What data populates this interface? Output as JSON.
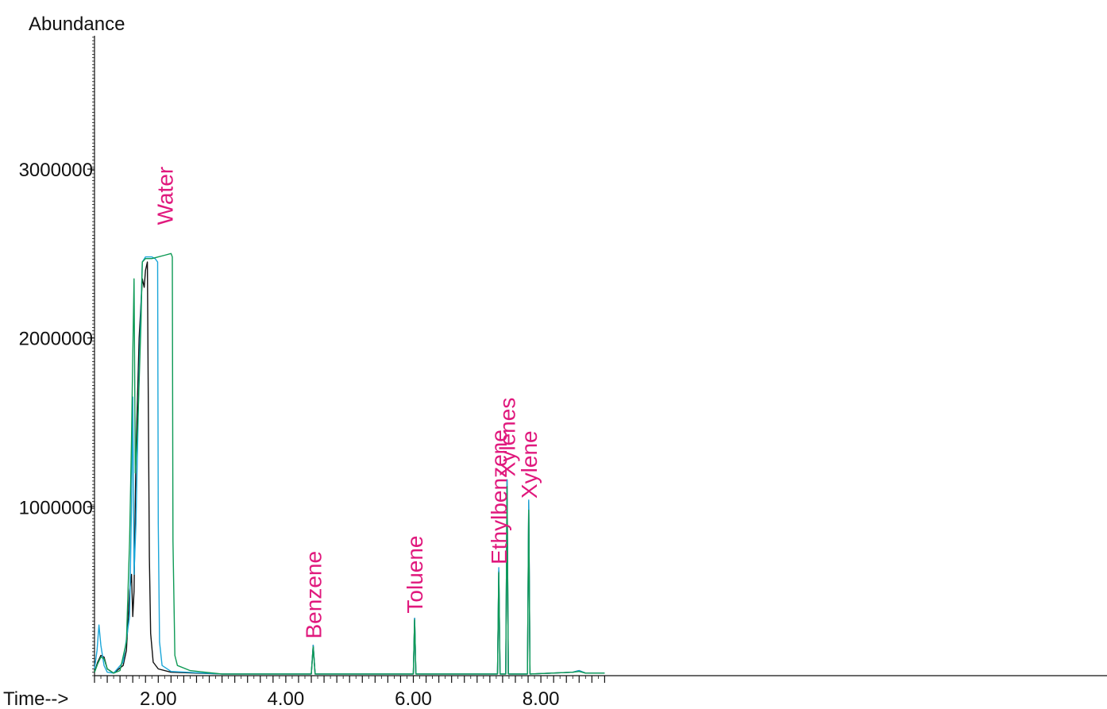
{
  "chart_data": {
    "type": "line",
    "ylabel": "Abundance",
    "xlabel": "Time-->",
    "xlim": [
      0.0,
      9.0
    ],
    "ylim": [
      0,
      3900000
    ],
    "x_tick_labels": [
      "2.00",
      "4.00",
      "6.00",
      "8.00"
    ],
    "x_ticks": [
      2,
      4,
      6,
      8
    ],
    "y_tick_labels": [
      "1000000",
      "2000000",
      "3000000"
    ],
    "y_ticks": [
      1000000,
      2000000,
      3000000
    ],
    "grid": false,
    "legend": false,
    "colors": {
      "black": "#111111",
      "blue": "#1aa6d9",
      "green": "#0e9a55",
      "annotation": "#e0197d"
    },
    "annotations": [
      {
        "text": "Water",
        "x": 2.1,
        "y": 2650000
      },
      {
        "text": "Benzene",
        "x": 4.43,
        "y": 200000
      },
      {
        "text": "Toluene",
        "x": 6.02,
        "y": 350000
      },
      {
        "text": "Ethylbenzene",
        "x": 7.34,
        "y": 640000
      },
      {
        "text": "Xylenes",
        "x": 7.47,
        "y": 1160000
      },
      {
        "text": "Xylene",
        "x": 7.81,
        "y": 1030000
      }
    ],
    "series": [
      {
        "color": "#111111",
        "x": [
          1.0,
          1.05,
          1.1,
          1.15,
          1.2,
          1.3,
          1.45,
          1.5,
          1.55,
          1.58,
          1.6,
          1.62,
          1.65,
          1.7,
          1.75,
          1.78,
          1.8,
          1.83,
          1.84,
          1.86,
          1.88,
          1.92,
          2.0,
          2.2,
          3.0,
          4.4,
          4.43,
          4.46,
          6.0,
          6.02,
          6.04,
          7.32,
          7.34,
          7.36,
          7.45,
          7.47,
          7.49,
          7.79,
          7.81,
          7.83,
          8.5,
          8.6,
          8.7,
          9.0
        ],
        "y": [
          20000,
          80000,
          120000,
          110000,
          40000,
          15000,
          60000,
          150000,
          500000,
          600000,
          350000,
          500000,
          1300000,
          2000000,
          2350000,
          2300000,
          2400000,
          2450000,
          1800000,
          700000,
          250000,
          80000,
          40000,
          20000,
          10000,
          10000,
          180000,
          10000,
          10000,
          340000,
          10000,
          10000,
          620000,
          10000,
          10000,
          1160000,
          10000,
          10000,
          1030000,
          10000,
          20000,
          30000,
          15000,
          15000
        ]
      },
      {
        "color": "#1aa6d9",
        "x": [
          1.0,
          1.04,
          1.07,
          1.1,
          1.15,
          1.2,
          1.3,
          1.45,
          1.55,
          1.58,
          1.6,
          1.62,
          1.65,
          1.7,
          1.75,
          1.8,
          1.9,
          1.95,
          1.99,
          2.0,
          2.02,
          2.06,
          2.2,
          3.0,
          4.4,
          4.43,
          4.46,
          6.0,
          6.02,
          6.04,
          7.32,
          7.34,
          7.36,
          7.45,
          7.47,
          7.49,
          7.79,
          7.81,
          7.83,
          8.5,
          8.6,
          8.7,
          9.0
        ],
        "y": [
          40000,
          150000,
          300000,
          180000,
          60000,
          20000,
          15000,
          80000,
          350000,
          1000000,
          1650000,
          600000,
          900000,
          1800000,
          2450000,
          2480000,
          2480000,
          2470000,
          2450000,
          900000,
          200000,
          60000,
          25000,
          10000,
          10000,
          180000,
          10000,
          10000,
          340000,
          10000,
          10000,
          640000,
          10000,
          10000,
          1160000,
          10000,
          10000,
          1040000,
          10000,
          20000,
          30000,
          15000,
          15000
        ]
      },
      {
        "color": "#0e9a55",
        "x": [
          1.0,
          1.05,
          1.1,
          1.15,
          1.2,
          1.3,
          1.4,
          1.5,
          1.55,
          1.58,
          1.6,
          1.62,
          1.64,
          1.68,
          1.73,
          1.75,
          1.8,
          1.9,
          2.0,
          2.1,
          2.2,
          2.22,
          2.23,
          2.26,
          2.3,
          2.5,
          3.0,
          4.4,
          4.43,
          4.46,
          6.0,
          6.02,
          6.04,
          7.32,
          7.34,
          7.36,
          7.45,
          7.47,
          7.49,
          7.79,
          7.81,
          7.83,
          8.5,
          8.6,
          8.7,
          9.0
        ],
        "y": [
          20000,
          70000,
          110000,
          100000,
          40000,
          15000,
          30000,
          200000,
          800000,
          1400000,
          1900000,
          2350000,
          1200000,
          1500000,
          2100000,
          2450000,
          2470000,
          2470000,
          2480000,
          2490000,
          2500000,
          2480000,
          800000,
          120000,
          60000,
          30000,
          10000,
          10000,
          170000,
          10000,
          10000,
          330000,
          10000,
          10000,
          610000,
          10000,
          10000,
          1120000,
          10000,
          10000,
          980000,
          10000,
          20000,
          25000,
          15000,
          15000
        ]
      }
    ]
  }
}
